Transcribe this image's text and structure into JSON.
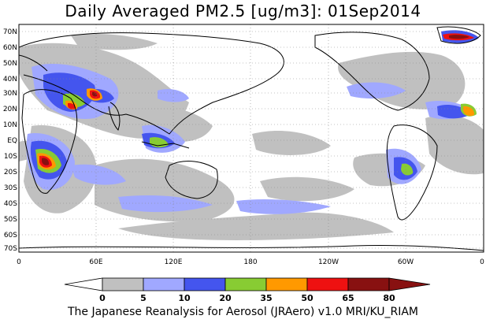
{
  "title": "Daily Averaged PM2.5 [ug/m3]: 01Sep2014",
  "footer": "The Japanese Reanalysis for Aerosol (JRAero) v1.0 MRI/KU_RIAM",
  "lat_labels": [
    "70N",
    "60N",
    "50N",
    "40N",
    "30N",
    "20N",
    "10N",
    "EQ",
    "10S",
    "20S",
    "30S",
    "40S",
    "50S",
    "60S",
    "70S"
  ],
  "lon_labels": [
    "0",
    "60E",
    "120E",
    "180",
    "120W",
    "60W",
    "0"
  ],
  "colorbar": {
    "levels": [
      "0",
      "5",
      "10",
      "20",
      "35",
      "50",
      "65",
      "80"
    ],
    "colors": [
      "#ffffff",
      "#c0c0c0",
      "#a0a8ff",
      "#4455ee",
      "#88cc33",
      "#ff9900",
      "#ee1111",
      "#881111"
    ]
  },
  "colors": {
    "low": "#c0c0c0",
    "light_blue": "#a0a8ff",
    "blue": "#4455ee",
    "green": "#88cc33",
    "orange": "#ff9900",
    "red": "#ee1111",
    "dark_red": "#881111"
  }
}
